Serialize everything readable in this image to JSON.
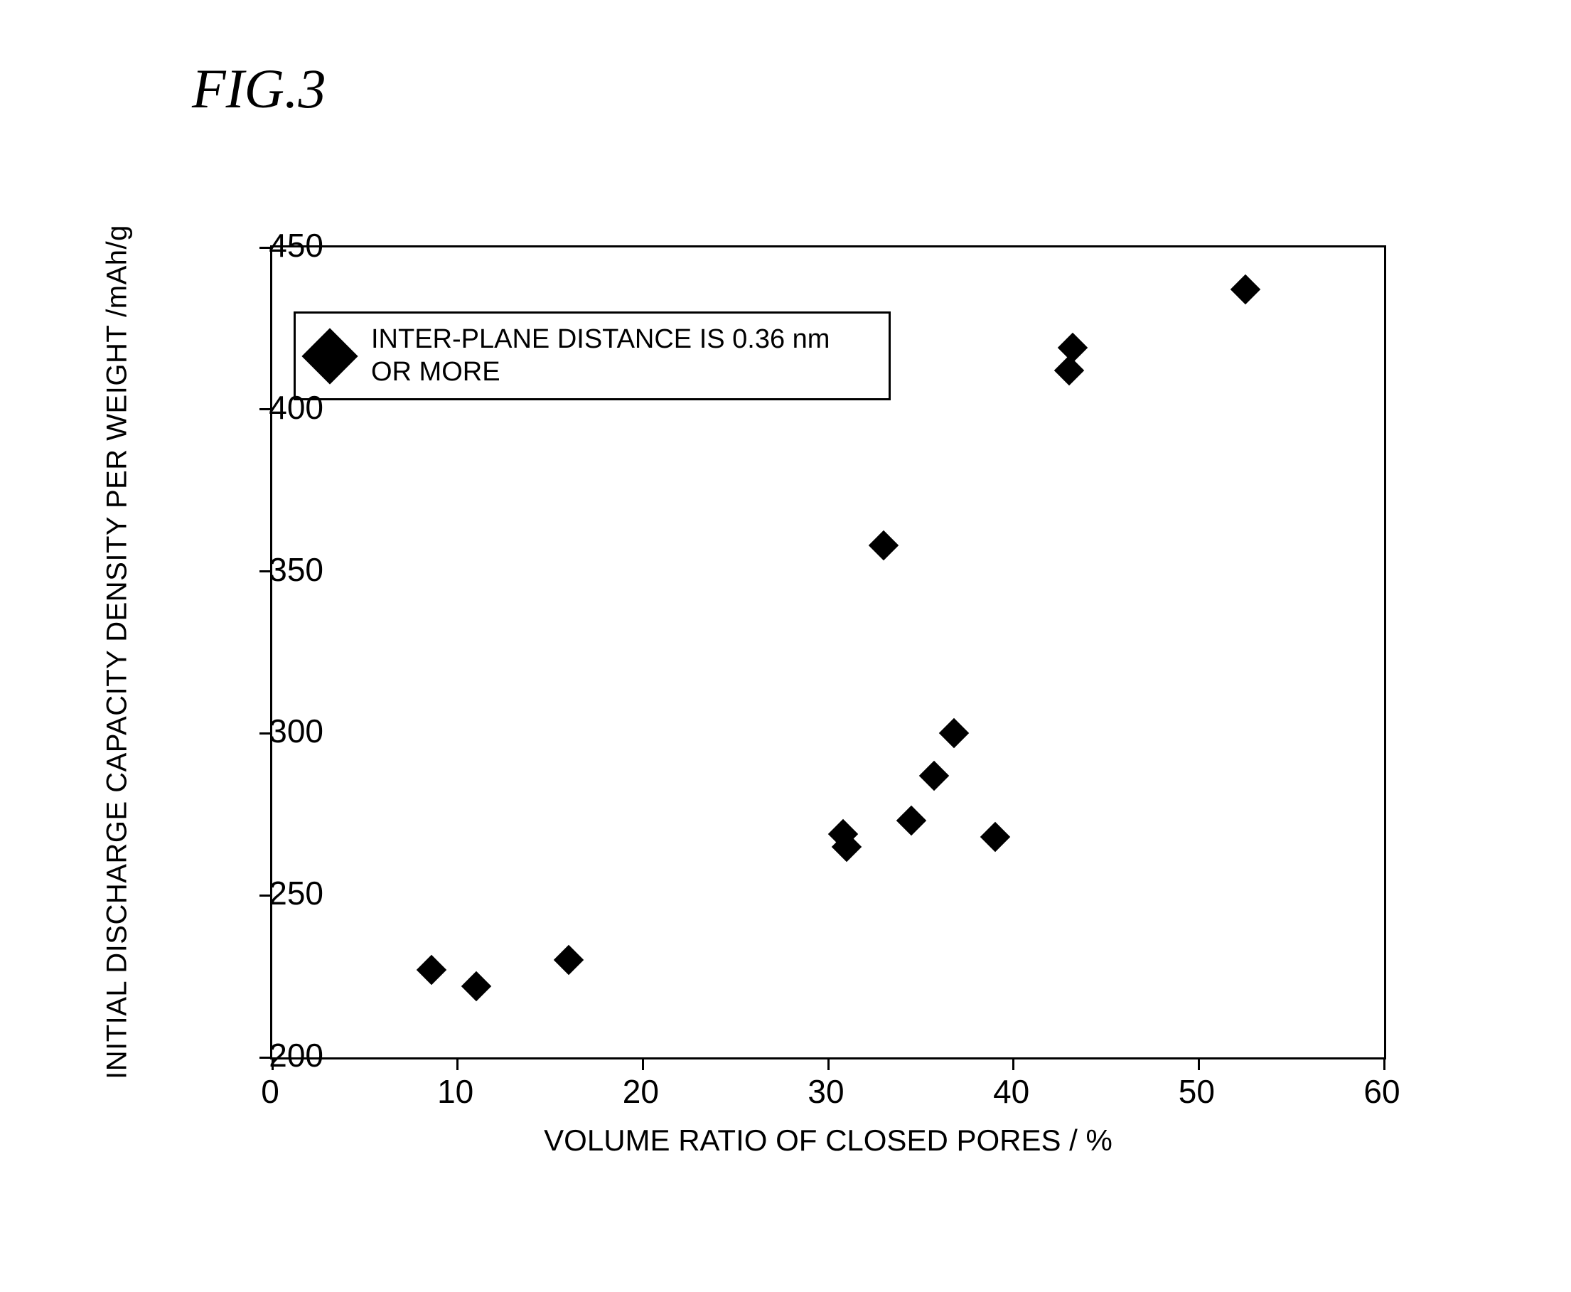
{
  "figure_label": "FIG.3",
  "chart": {
    "type": "scatter",
    "background_color": "#ffffff",
    "border_color": "#000000",
    "border_width": 3,
    "x_axis": {
      "title": "VOLUME RATIO OF CLOSED PORES / %",
      "min": 0,
      "max": 60,
      "tick_step": 10,
      "tick_labels": [
        "0",
        "10",
        "20",
        "30",
        "40",
        "50",
        "60"
      ],
      "label_fontsize": 46,
      "title_fontsize": 42,
      "label_color": "#000000"
    },
    "y_axis": {
      "title": "INITIAL DISCHARGE CAPACITY DENSITY PER WEIGHT /mAh/g",
      "min": 200,
      "max": 450,
      "tick_step": 50,
      "tick_labels": [
        "200",
        "250",
        "300",
        "350",
        "400",
        "450"
      ],
      "label_fontsize": 46,
      "title_fontsize": 40,
      "label_color": "#000000"
    },
    "legend": {
      "marker_color": "#000000",
      "marker_size": 56,
      "text": "INTER-PLANE DISTANCE IS 0.36 nm OR MORE",
      "fontsize": 38,
      "border_color": "#000000",
      "border_width": 3,
      "background_color": "#ffffff"
    },
    "series": {
      "marker_shape": "diamond",
      "marker_color": "#000000",
      "marker_size": 30,
      "points": [
        {
          "x": 8.6,
          "y": 227
        },
        {
          "x": 11.0,
          "y": 222
        },
        {
          "x": 16.0,
          "y": 230
        },
        {
          "x": 30.8,
          "y": 269
        },
        {
          "x": 31.0,
          "y": 265
        },
        {
          "x": 33.0,
          "y": 358
        },
        {
          "x": 34.5,
          "y": 273
        },
        {
          "x": 35.7,
          "y": 287
        },
        {
          "x": 36.8,
          "y": 300
        },
        {
          "x": 39.0,
          "y": 268
        },
        {
          "x": 43.0,
          "y": 412
        },
        {
          "x": 43.2,
          "y": 419
        },
        {
          "x": 52.5,
          "y": 437
        }
      ]
    }
  }
}
